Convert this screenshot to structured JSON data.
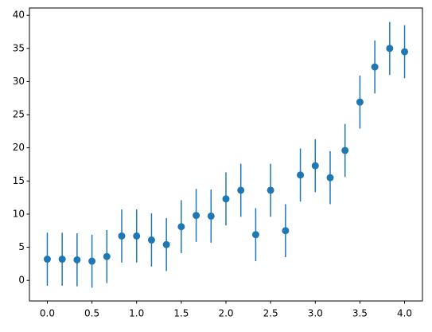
{
  "chart_data": {
    "type": "errorbar",
    "x": [
      0,
      0.16667,
      0.33333,
      0.5,
      0.66667,
      0.83333,
      1.0,
      1.16667,
      1.33333,
      1.5,
      1.66667,
      1.83333,
      2.0,
      2.16667,
      2.33333,
      2.5,
      2.66667,
      2.83333,
      3.0,
      3.16667,
      3.33333,
      3.5,
      3.66667,
      3.83333,
      4.0
    ],
    "values": [
      3.2,
      3.2,
      3.1,
      2.9,
      3.6,
      6.7,
      6.7,
      6.1,
      5.4,
      8.1,
      9.8,
      9.7,
      12.3,
      13.6,
      6.9,
      13.6,
      7.5,
      15.9,
      17.3,
      15.5,
      19.6,
      26.9,
      32.2,
      35.0,
      34.5
    ],
    "errors": [
      4,
      4,
      4,
      4,
      4,
      4,
      4,
      4,
      4,
      4,
      4,
      4,
      4,
      4,
      4,
      4,
      4,
      4,
      4,
      4,
      4,
      4,
      4,
      4,
      4
    ],
    "color": "#1f77b4",
    "xlim": [
      -0.2,
      4.2
    ],
    "xticks": [
      {
        "value": 0,
        "label": "0.0"
      },
      {
        "value": 0.5,
        "label": "0.5"
      },
      {
        "value": 1,
        "label": "1.0"
      },
      {
        "value": 1.5,
        "label": "1.5"
      },
      {
        "value": 2,
        "label": "2.0"
      },
      {
        "value": 2.5,
        "label": "2.5"
      },
      {
        "value": 3,
        "label": "3.0"
      },
      {
        "value": 3.5,
        "label": "3.5"
      },
      {
        "value": 4,
        "label": "4.0"
      }
    ],
    "ylim": [
      -3.1,
      41.1
    ],
    "yticks": [
      0,
      5,
      10,
      15,
      20,
      25,
      30,
      35,
      40
    ]
  }
}
